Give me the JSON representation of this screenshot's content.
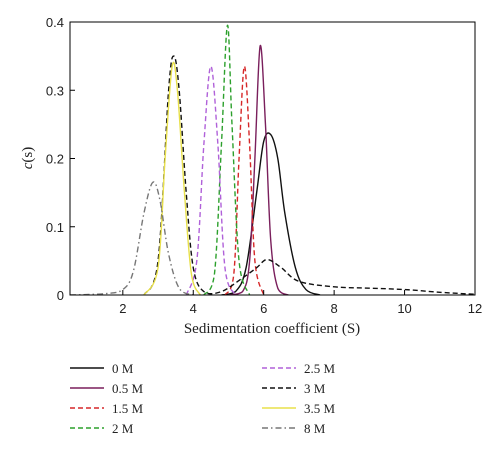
{
  "chart_data": {
    "type": "line",
    "title": "",
    "xlabel": "Sedimentation coefficient (S)",
    "ylabel_italic": "c",
    "ylabel_tail": "(s)",
    "xlim": [
      0.5,
      12
    ],
    "ylim": [
      0,
      0.4
    ],
    "xticks": [
      2,
      4,
      6,
      8,
      10,
      12
    ],
    "xtick_labels": [
      "2",
      "4",
      "6",
      "8",
      "10",
      "12"
    ],
    "yticks": [
      0,
      0.1,
      0.2,
      0.3,
      0.4
    ],
    "ytick_labels": [
      "0",
      "0.1",
      "0.2",
      "0.3",
      "0.4"
    ],
    "grid": false,
    "legend_position": "below",
    "series": [
      {
        "name": "0 M",
        "color": "#111111",
        "dash": "solid",
        "points": [
          [
            4.8,
            0
          ],
          [
            5.2,
            0.005
          ],
          [
            5.5,
            0.04
          ],
          [
            5.8,
            0.15
          ],
          [
            6.0,
            0.225
          ],
          [
            6.2,
            0.235
          ],
          [
            6.4,
            0.2
          ],
          [
            6.6,
            0.12
          ],
          [
            6.9,
            0.04
          ],
          [
            7.2,
            0.008
          ],
          [
            7.6,
            0
          ]
        ]
      },
      {
        "name": "0.5 M",
        "color": "#7a1f5c",
        "dash": "solid",
        "points": [
          [
            5.0,
            0
          ],
          [
            5.4,
            0.005
          ],
          [
            5.6,
            0.05
          ],
          [
            5.75,
            0.2
          ],
          [
            5.9,
            0.365
          ],
          [
            6.05,
            0.25
          ],
          [
            6.2,
            0.08
          ],
          [
            6.4,
            0.01
          ],
          [
            6.7,
            0
          ]
        ]
      },
      {
        "name": "1.5 M",
        "color": "#d62728",
        "dash": "dashed",
        "points": [
          [
            4.9,
            0
          ],
          [
            5.15,
            0.03
          ],
          [
            5.3,
            0.2
          ],
          [
            5.45,
            0.335
          ],
          [
            5.6,
            0.22
          ],
          [
            5.75,
            0.05
          ],
          [
            6.0,
            0
          ]
        ]
      },
      {
        "name": "2 M",
        "color": "#2ca02c",
        "dash": "dashed",
        "points": [
          [
            4.3,
            0
          ],
          [
            4.6,
            0.03
          ],
          [
            4.8,
            0.22
          ],
          [
            4.97,
            0.395
          ],
          [
            5.1,
            0.25
          ],
          [
            5.3,
            0.05
          ],
          [
            5.6,
            0
          ]
        ]
      },
      {
        "name": "2.5 M",
        "color": "#b061d9",
        "dash": "dashed",
        "points": [
          [
            3.8,
            0
          ],
          [
            4.1,
            0.05
          ],
          [
            4.3,
            0.22
          ],
          [
            4.5,
            0.335
          ],
          [
            4.7,
            0.22
          ],
          [
            4.9,
            0.04
          ],
          [
            5.2,
            0
          ]
        ]
      },
      {
        "name": "3 M",
        "color": "#111111",
        "dash": "dashed",
        "points": [
          [
            2.6,
            0
          ],
          [
            3.0,
            0.05
          ],
          [
            3.3,
            0.3
          ],
          [
            3.45,
            0.35
          ],
          [
            3.6,
            0.3
          ],
          [
            3.8,
            0.15
          ],
          [
            4.0,
            0.04
          ],
          [
            4.3,
            0.005
          ],
          [
            4.8,
            0.005
          ],
          [
            5.4,
            0.025
          ],
          [
            5.8,
            0.04
          ],
          [
            6.1,
            0.052
          ],
          [
            6.5,
            0.04
          ],
          [
            7.0,
            0.02
          ],
          [
            8.0,
            0.012
          ],
          [
            9.0,
            0.01
          ],
          [
            10.0,
            0.008
          ],
          [
            11.0,
            0.004
          ],
          [
            12.0,
            0.001
          ]
        ]
      },
      {
        "name": "3.5 M",
        "color": "#e8e04a",
        "dash": "solid",
        "points": [
          [
            2.6,
            0
          ],
          [
            3.0,
            0.04
          ],
          [
            3.2,
            0.2
          ],
          [
            3.4,
            0.335
          ],
          [
            3.55,
            0.3
          ],
          [
            3.75,
            0.15
          ],
          [
            3.95,
            0.03
          ],
          [
            4.2,
            0
          ]
        ]
      },
      {
        "name": "8 M",
        "color": "#777777",
        "dash": "dashdot",
        "points": [
          [
            0.5,
            0
          ],
          [
            1.5,
            0.002
          ],
          [
            2.0,
            0.008
          ],
          [
            2.3,
            0.035
          ],
          [
            2.6,
            0.12
          ],
          [
            2.85,
            0.165
          ],
          [
            3.05,
            0.14
          ],
          [
            3.3,
            0.06
          ],
          [
            3.6,
            0.01
          ],
          [
            4.0,
            0
          ]
        ]
      }
    ]
  }
}
